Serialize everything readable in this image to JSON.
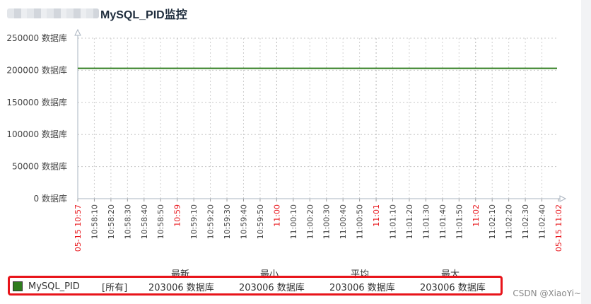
{
  "title": "MySQL_PID监控",
  "legend": {
    "name": "MySQL_PID",
    "scope": "[所有]",
    "color": "#2e7d1e",
    "stat_headers": [
      "最新",
      "最小",
      "平均",
      "最大"
    ],
    "stat_values": [
      "203006 数据库",
      "203006 数据库",
      "203006 数据库",
      "203006 数据库"
    ]
  },
  "watermark": "CSDN @XiaoYi~",
  "chart_data": {
    "type": "line",
    "y_tick_labels": [
      "0 数据库",
      "50000 数据库",
      "100000 数据库",
      "150000 数据库",
      "200000 数据库",
      "250000 数据库"
    ],
    "ylim": [
      0,
      250000
    ],
    "x_tick_labels": [
      {
        "label": "05-15 10:57",
        "highlight": true
      },
      {
        "label": "10:58:10",
        "highlight": false
      },
      {
        "label": "10:58:20",
        "highlight": false
      },
      {
        "label": "10:58:30",
        "highlight": false
      },
      {
        "label": "10:58:40",
        "highlight": false
      },
      {
        "label": "10:58:50",
        "highlight": false
      },
      {
        "label": "10:59",
        "highlight": true
      },
      {
        "label": "10:59:10",
        "highlight": false
      },
      {
        "label": "10:59:20",
        "highlight": false
      },
      {
        "label": "10:59:30",
        "highlight": false
      },
      {
        "label": "10:59:40",
        "highlight": false
      },
      {
        "label": "10:59:50",
        "highlight": false
      },
      {
        "label": "11:00",
        "highlight": true
      },
      {
        "label": "11:00:10",
        "highlight": false
      },
      {
        "label": "11:00:20",
        "highlight": false
      },
      {
        "label": "11:00:30",
        "highlight": false
      },
      {
        "label": "11:00:40",
        "highlight": false
      },
      {
        "label": "11:00:50",
        "highlight": false
      },
      {
        "label": "11:01",
        "highlight": true
      },
      {
        "label": "11:01:10",
        "highlight": false
      },
      {
        "label": "11:01:20",
        "highlight": false
      },
      {
        "label": "11:01:30",
        "highlight": false
      },
      {
        "label": "11:01:40",
        "highlight": false
      },
      {
        "label": "11:01:50",
        "highlight": false
      },
      {
        "label": "11:02",
        "highlight": true
      },
      {
        "label": "11:02:10",
        "highlight": false
      },
      {
        "label": "11:02:20",
        "highlight": false
      },
      {
        "label": "11:02:30",
        "highlight": false
      },
      {
        "label": "11:02:40",
        "highlight": false
      },
      {
        "label": "05-15 11:02",
        "highlight": true
      }
    ],
    "series": [
      {
        "name": "MySQL_PID",
        "color": "#2e7d1e",
        "values": [
          203006,
          203006
        ]
      }
    ],
    "grid": true,
    "legend_position": "bottom",
    "highlight_color": "#e8141a"
  }
}
